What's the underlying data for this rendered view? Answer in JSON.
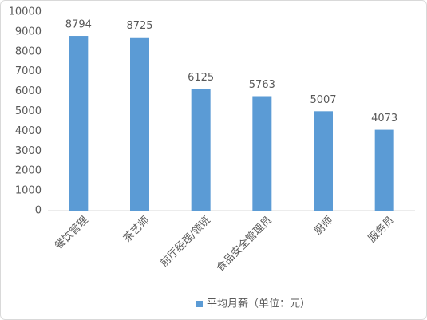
{
  "chart_data": {
    "type": "bar",
    "categories": [
      "餐饮管理",
      "茶艺师",
      "前厅经理/领班",
      "食品安全管理员",
      "厨师",
      "服务员"
    ],
    "series": [
      {
        "name": "平均月薪（单位：元）",
        "color": "#5b9bd5",
        "values": [
          8794,
          8725,
          6125,
          5763,
          5007,
          4073
        ]
      }
    ],
    "ylim": [
      0,
      10000
    ],
    "yticks": [
      0,
      1000,
      2000,
      3000,
      4000,
      5000,
      6000,
      7000,
      8000,
      9000,
      10000
    ],
    "grid": false,
    "legend": "bottom"
  }
}
